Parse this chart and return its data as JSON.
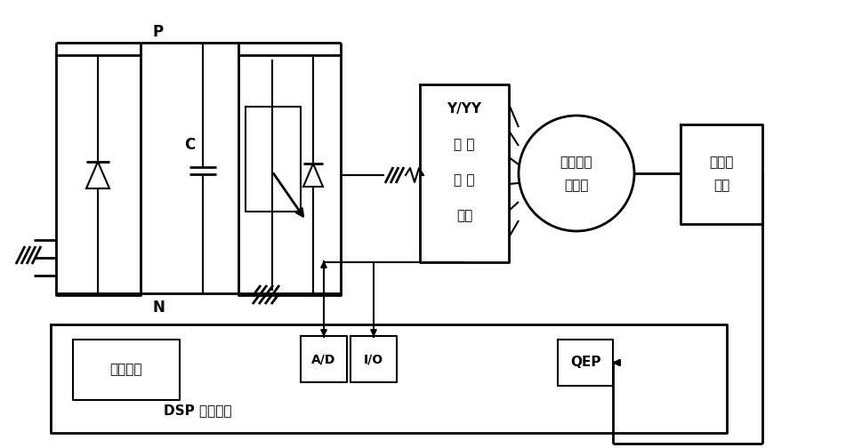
{
  "bg": "#ffffff",
  "p_label": "P",
  "n_label": "N",
  "c_label": "C",
  "yyy_text": [
    "Y/YY",
    "变 换",
    "控 制",
    "电路"
  ],
  "motor_text": [
    "三相交流",
    "电动机"
  ],
  "sensor_text": [
    "速度传",
    "感器"
  ],
  "drive_text": "驱动电路",
  "dsp_text": "DSP 控制系统",
  "ad_text": "A/D",
  "io_text": "I/O",
  "qep_text": "QEP"
}
